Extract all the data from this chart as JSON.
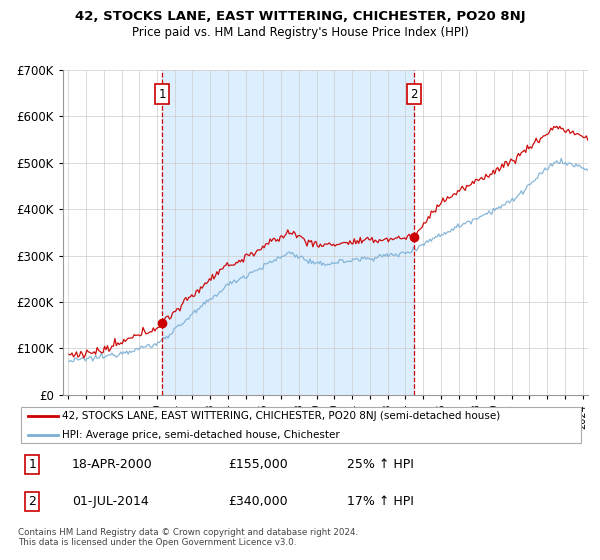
{
  "title1": "42, STOCKS LANE, EAST WITTERING, CHICHESTER, PO20 8NJ",
  "title2": "Price paid vs. HM Land Registry's House Price Index (HPI)",
  "legend_line1": "42, STOCKS LANE, EAST WITTERING, CHICHESTER, PO20 8NJ (semi-detached house)",
  "legend_line2": "HPI: Average price, semi-detached house, Chichester",
  "sale1_label": "1",
  "sale1_date": "18-APR-2000",
  "sale1_price": "£155,000",
  "sale1_hpi": "25% ↑ HPI",
  "sale2_label": "2",
  "sale2_date": "01-JUL-2014",
  "sale2_price": "£340,000",
  "sale2_hpi": "17% ↑ HPI",
  "footer": "Contains HM Land Registry data © Crown copyright and database right 2024.\nThis data is licensed under the Open Government Licence v3.0.",
  "hpi_color": "#7bafd4",
  "property_color": "#cc0000",
  "vline_color": "#cc0000",
  "shade_color": "#ddeeff",
  "ylim": [
    0,
    700000
  ],
  "yticks": [
    0,
    100000,
    200000,
    300000,
    400000,
    500000,
    600000,
    700000
  ],
  "background": "#ffffff",
  "grid_color": "#cccccc",
  "sale1_x": 2000.29,
  "sale2_x": 2014.5
}
